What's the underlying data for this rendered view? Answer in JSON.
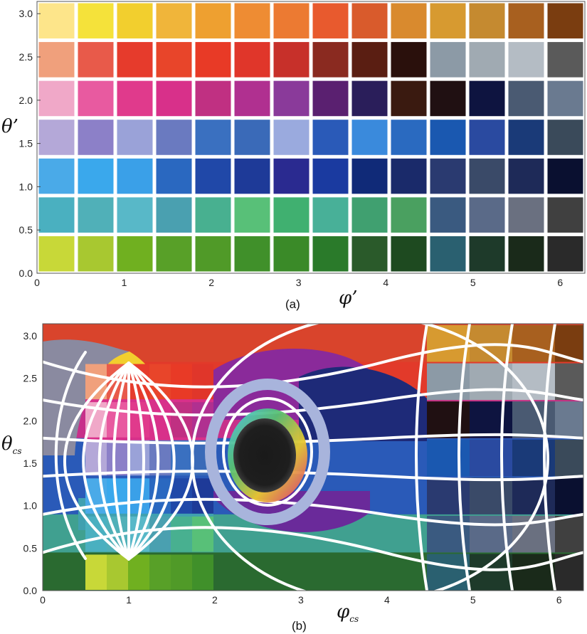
{
  "chart_data": [
    {
      "type": "heatmap",
      "panel_label": "(a)",
      "xlabel": "φ’",
      "ylabel": "θ’",
      "xlim": [
        0,
        6.283
      ],
      "ylim": [
        0,
        3.1416
      ],
      "x_ticks": [
        "0",
        "1",
        "2",
        "3",
        "4",
        "5",
        "6"
      ],
      "y_ticks": [
        "0.0",
        "0.5",
        "1.0",
        "1.5",
        "2.0",
        "2.5",
        "3.0"
      ],
      "grid": "white lines",
      "rows_top_to_bottom": [
        [
          "#fde58a",
          "#f5e23a",
          "#f2cf2e",
          "#f0b53a",
          "#eea030",
          "#ee8c33",
          "#ec7a32",
          "#e85a2e",
          "#d95b2c",
          "#d98a2e",
          "#d79a30",
          "#c58a30",
          "#a8601f",
          "#7a3d10"
        ],
        [
          "#f0a07c",
          "#e85a4a",
          "#e63b2c",
          "#e8452a",
          "#e83a26",
          "#e0362a",
          "#c7302a",
          "#8a2a20",
          "#5a1e12",
          "#2a100c",
          "#8c9aa6",
          "#a0aab2",
          "#b4bcc4",
          "#5a5a5a"
        ],
        [
          "#f0a8c8",
          "#e85aa0",
          "#e03a8c",
          "#d8308a",
          "#c03082",
          "#b03090",
          "#8a3a9a",
          "#5a2070",
          "#2a1e5a",
          "#3a1a10",
          "#201012",
          "#0e1440",
          "#4a5a72",
          "#6a7a90"
        ],
        [
          "#b4a8d8",
          "#8c80c8",
          "#9aa2d8",
          "#6a7ac0",
          "#3a70c0",
          "#3a6ab8",
          "#9aaade",
          "#2a5ab8",
          "#3a8adc",
          "#2a6ac0",
          "#1a58b0",
          "#2a4aa0",
          "#1a3a78",
          "#3a4a5a"
        ],
        [
          "#4aaae8",
          "#3aa8ec",
          "#3aa0e8",
          "#2a68c0",
          "#2048a8",
          "#1e3a98",
          "#2a2a90",
          "#1a3aa0",
          "#102a78",
          "#1a2a6a",
          "#2a3a70",
          "#3a4a68",
          "#1e2a58",
          "#0a1030"
        ],
        [
          "#4ab0c0",
          "#50b0b8",
          "#58b8c8",
          "#4aa0b0",
          "#48b090",
          "#58c078",
          "#40b070",
          "#48b098",
          "#40a070",
          "#4aa060",
          "#3a5a80",
          "#5a6a88",
          "#6a7080",
          "#404040"
        ],
        [
          "#c8d838",
          "#a8c830",
          "#70b020",
          "#58a028",
          "#509a28",
          "#40902a",
          "#3a8a28",
          "#2a7a2a",
          "#2a5a2a",
          "#1e4a20",
          "#2a6070",
          "#1e3a2a",
          "#1a2a1a",
          "#2a2a2a"
        ]
      ]
    },
    {
      "type": "heatmap",
      "panel_label": "(b)",
      "xlabel": "φ",
      "xlabel_sub": "cs",
      "ylabel": "θ",
      "ylabel_sub": "cs",
      "xlim": [
        0,
        6.283
      ],
      "ylim": [
        0,
        3.1416
      ],
      "x_ticks": [
        "0",
        "1",
        "2",
        "3",
        "4",
        "5",
        "6"
      ],
      "y_ticks": [
        "0.0",
        "0.5",
        "1.0",
        "1.5",
        "2.0",
        "2.5",
        "3.0"
      ],
      "grid": "distorted white lines",
      "dark_disk_center": [
        2.75,
        1.6
      ],
      "bands_top_to_bottom": [
        "#d9442c",
        "#e23a2a",
        "#c7308a",
        "#2a5ab8",
        "#2a5ab8",
        "#40a090",
        "#2a6a30"
      ]
    }
  ]
}
